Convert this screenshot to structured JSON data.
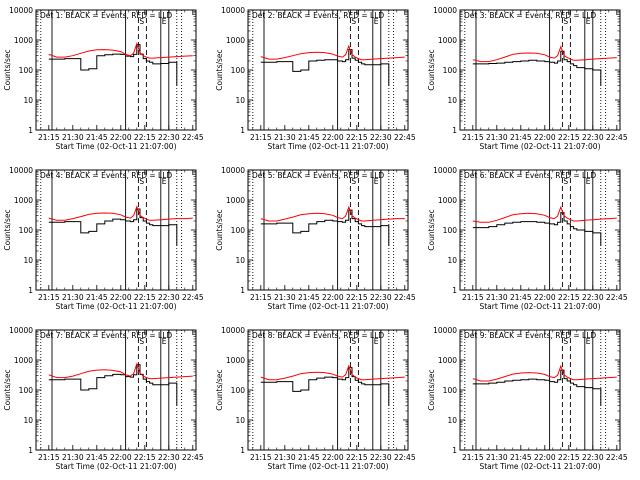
{
  "figure": {
    "panel_count": 9,
    "colors": {
      "events": "#000000",
      "lld": "#ff0000",
      "background": "#ffffff",
      "axes": "#000000"
    }
  },
  "chart_data": {
    "type": "line",
    "y_scale": "log",
    "ylim": [
      1,
      10000
    ],
    "xlim": [
      "21:07",
      "22:47"
    ],
    "xticks": [
      "21:15",
      "21:30",
      "21:45",
      "22:00",
      "22:15",
      "22:30",
      "22:45"
    ],
    "yticks": [
      "1",
      "10",
      "100",
      "1000",
      "10000"
    ],
    "ylabel": "Counts/sec",
    "xlabel": "Start Time (02-Oct-11 21:07:00)",
    "interval_markers": [
      {
        "label": "",
        "time": "21:10",
        "style": "dotted"
      },
      {
        "label": "",
        "time": "21:17",
        "style": "solid"
      },
      {
        "label": "",
        "time": "22:03",
        "style": "solid"
      },
      {
        "label": "S",
        "time": "22:11",
        "style": "dashed"
      },
      {
        "label": "",
        "time": "22:16",
        "style": "dashed"
      },
      {
        "label": "E",
        "time": "22:25",
        "style": "solid"
      },
      {
        "label": "",
        "time": "22:30",
        "style": "solid"
      },
      {
        "label": "",
        "time": "22:35",
        "style": "dotted"
      },
      {
        "label": "",
        "time": "22:38",
        "style": "dotted"
      }
    ],
    "x_times": [
      "21:15",
      "21:20",
      "21:25",
      "21:30",
      "21:35",
      "21:40",
      "21:45",
      "21:50",
      "21:55",
      "22:00",
      "22:03",
      "22:06",
      "22:08",
      "22:10",
      "22:12",
      "22:14",
      "22:16",
      "22:18",
      "22:20",
      "22:25",
      "22:30",
      "22:35",
      "22:40",
      "22:45"
    ],
    "panels": [
      {
        "title": "Det 1: BLACK = Events, RED = LLD",
        "series": [
          {
            "name": "Events",
            "color": "#000000",
            "values": [
              230,
              230,
              240,
              240,
              100,
              110,
              300,
              320,
              340,
              330,
              290,
              280,
              330,
              700,
              340,
              240,
              200,
              180,
              160,
              165,
              180,
              30,
              null,
              null
            ]
          },
          {
            "name": "LLD",
            "color": "#ff0000",
            "values": [
              330,
              270,
              270,
              300,
              360,
              430,
              470,
              480,
              460,
              410,
              330,
              300,
              360,
              760,
              380,
              300,
              270,
              250,
              250,
              260,
              270,
              280,
              290,
              300
            ]
          }
        ]
      },
      {
        "title": "Det 2: BLACK = Events, RED = LLD",
        "series": [
          {
            "name": "Events",
            "color": "#000000",
            "values": [
              180,
              180,
              190,
              190,
              90,
              100,
              200,
              210,
              220,
              220,
              200,
              190,
              220,
              480,
              250,
              210,
              180,
              160,
              150,
              150,
              160,
              30,
              null,
              null
            ]
          },
          {
            "name": "LLD",
            "color": "#ff0000",
            "values": [
              280,
              230,
              230,
              260,
              300,
              350,
              380,
              390,
              380,
              340,
              290,
              270,
              320,
              620,
              330,
              270,
              240,
              220,
              220,
              230,
              240,
              250,
              260,
              270
            ]
          }
        ]
      },
      {
        "title": "Det 3: BLACK = Events, RED = LLD",
        "series": [
          {
            "name": "Events",
            "color": "#000000",
            "values": [
              160,
              160,
              165,
              170,
              180,
              190,
              200,
              210,
              200,
              190,
              180,
              170,
              200,
              420,
              220,
              190,
              160,
              140,
              120,
              110,
              100,
              30,
              null,
              null
            ]
          },
          {
            "name": "LLD",
            "color": "#ff0000",
            "values": [
              220,
              190,
              190,
              220,
              270,
              330,
              360,
              370,
              360,
              320,
              270,
              250,
              300,
              600,
              310,
              260,
              230,
              210,
              210,
              220,
              230,
              240,
              250,
              260
            ]
          }
        ]
      },
      {
        "title": "Det 4: BLACK = Events, RED = LLD",
        "series": [
          {
            "name": "Events",
            "color": "#000000",
            "values": [
              180,
              180,
              190,
              190,
              80,
              90,
              160,
              200,
              230,
              220,
              200,
              190,
              220,
              500,
              260,
              200,
              170,
              150,
              140,
              140,
              150,
              30,
              null,
              null
            ]
          },
          {
            "name": "LLD",
            "color": "#ff0000",
            "values": [
              250,
              210,
              210,
              240,
              280,
              330,
              360,
              370,
              360,
              320,
              270,
              250,
              300,
              600,
              310,
              260,
              230,
              210,
              210,
              220,
              230,
              240,
              240,
              250
            ]
          }
        ]
      },
      {
        "title": "Det 5: BLACK = Events, RED = LLD",
        "series": [
          {
            "name": "Events",
            "color": "#000000",
            "values": [
              160,
              160,
              170,
              170,
              80,
              90,
              160,
              190,
              210,
              200,
              190,
              180,
              210,
              460,
              240,
              190,
              160,
              140,
              130,
              130,
              140,
              30,
              null,
              null
            ]
          },
          {
            "name": "LLD",
            "color": "#ff0000",
            "values": [
              240,
              200,
              200,
              230,
              270,
              320,
              350,
              360,
              350,
              310,
              260,
              240,
              290,
              580,
              300,
              250,
              220,
              200,
              200,
              210,
              220,
              230,
              240,
              240
            ]
          }
        ]
      },
      {
        "title": "Det 6: BLACK = Events, RED = LLD",
        "series": [
          {
            "name": "Events",
            "color": "#000000",
            "values": [
              120,
              120,
              130,
              150,
              170,
              180,
              190,
              190,
              180,
              170,
              160,
              150,
              180,
              380,
              200,
              160,
              130,
              110,
              100,
              90,
              80,
              30,
              null,
              null
            ]
          },
          {
            "name": "LLD",
            "color": "#ff0000",
            "values": [
              200,
              180,
              180,
              210,
              260,
              320,
              350,
              360,
              350,
              310,
              260,
              240,
              290,
              580,
              300,
              250,
              220,
              200,
              200,
              210,
              220,
              230,
              240,
              250
            ]
          }
        ]
      },
      {
        "title": "Det 7: BLACK = Events, RED = LLD",
        "series": [
          {
            "name": "Events",
            "color": "#000000",
            "values": [
              220,
              220,
              230,
              230,
              100,
              110,
              260,
              300,
              330,
              320,
              280,
              270,
              320,
              700,
              330,
              230,
              190,
              170,
              150,
              150,
              170,
              30,
              null,
              null
            ]
          },
          {
            "name": "LLD",
            "color": "#ff0000",
            "values": [
              320,
              260,
              260,
              290,
              350,
              420,
              460,
              470,
              450,
              400,
              320,
              290,
              350,
              740,
              370,
              290,
              260,
              240,
              240,
              250,
              260,
              270,
              280,
              290
            ]
          }
        ]
      },
      {
        "title": "Det 8: BLACK = Events, RED = LLD",
        "series": [
          {
            "name": "Events",
            "color": "#000000",
            "values": [
              180,
              180,
              190,
              190,
              90,
              100,
              220,
              250,
              270,
              260,
              230,
              220,
              260,
              560,
              280,
              210,
              180,
              160,
              150,
              150,
              160,
              30,
              null,
              null
            ]
          },
          {
            "name": "LLD",
            "color": "#ff0000",
            "values": [
              270,
              220,
              220,
              250,
              290,
              350,
              380,
              390,
              380,
              340,
              290,
              270,
              320,
              640,
              330,
              270,
              240,
              220,
              220,
              230,
              240,
              250,
              260,
              270
            ]
          }
        ]
      },
      {
        "title": "Det 9: BLACK = Events, RED = LLD",
        "series": [
          {
            "name": "Events",
            "color": "#000000",
            "values": [
              160,
              160,
              170,
              180,
              200,
              210,
              220,
              230,
              220,
              210,
              190,
              180,
              220,
              460,
              240,
              200,
              170,
              150,
              130,
              120,
              110,
              30,
              null,
              null
            ]
          },
          {
            "name": "LLD",
            "color": "#ff0000",
            "values": [
              240,
              200,
              200,
              230,
              280,
              340,
              370,
              380,
              370,
              330,
              280,
              260,
              310,
              620,
              320,
              270,
              240,
              220,
              220,
              230,
              240,
              250,
              260,
              270
            ]
          }
        ]
      }
    ]
  }
}
